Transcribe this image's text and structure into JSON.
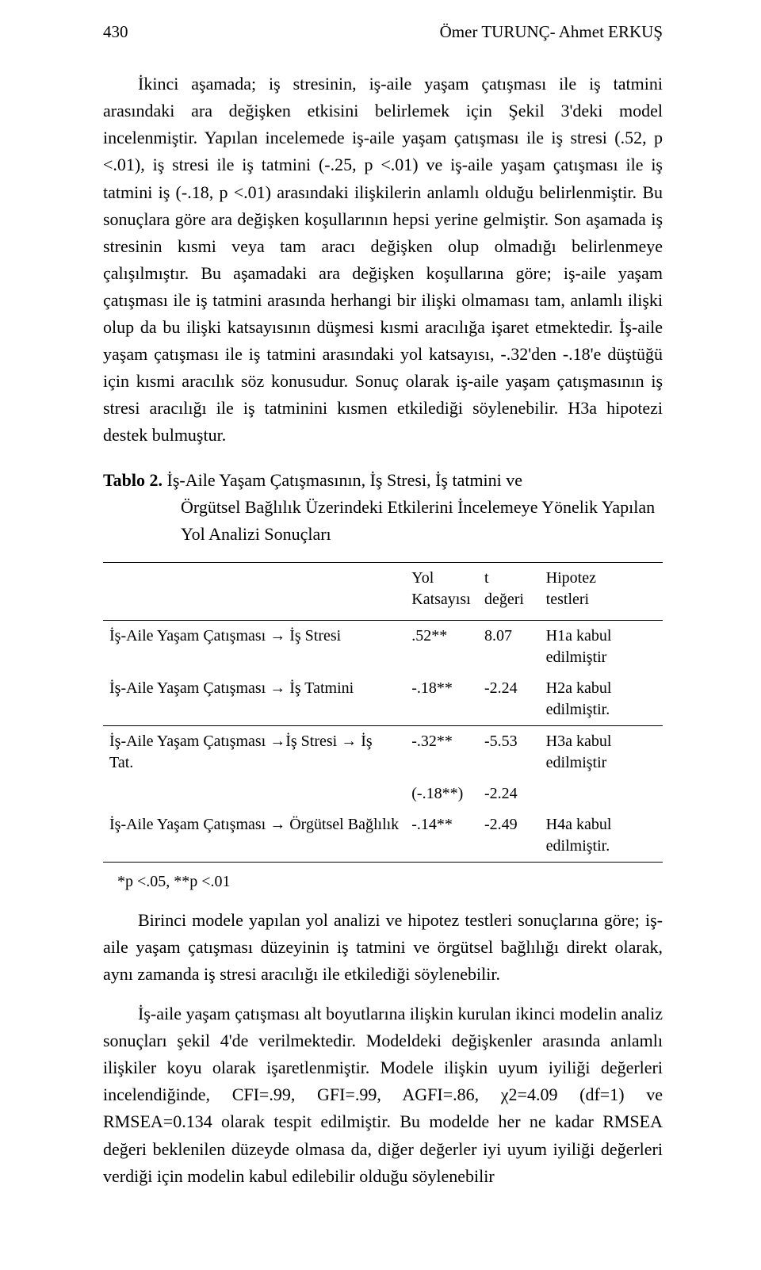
{
  "colors": {
    "text": "#000000",
    "background": "#ffffff",
    "rule": "#000000"
  },
  "typography": {
    "family": "Times New Roman",
    "body_size_pt": 22,
    "table_size_pt": 20,
    "line_height": 1.55
  },
  "header": {
    "page_number": "430",
    "running_title": "Ömer TURUNÇ- Ahmet ERKUŞ"
  },
  "paragraphs": {
    "p1": "İkinci aşamada; iş stresinin, iş-aile yaşam çatışması ile iş tatmini arasındaki ara değişken etkisini belirlemek için Şekil 3'deki model incelenmiştir. Yapılan incelemede iş-aile yaşam çatışması ile iş stresi (.52, p <.01), iş stresi ile iş tatmini (-.25, p <.01) ve iş-aile yaşam çatışması ile iş tatmini iş (-.18, p <.01) arasındaki ilişkilerin anlamlı olduğu belirlenmiştir. Bu sonuçlara göre ara değişken koşullarının hepsi yerine gelmiştir. Son aşamada iş stresinin kısmi veya tam aracı değişken olup olmadığı belirlenmeye çalışılmıştır. Bu aşamadaki ara değişken koşullarına göre; iş-aile yaşam çatışması ile iş tatmini arasında herhangi bir ilişki olmaması tam, anlamlı ilişki olup da bu ilişki katsayısının düşmesi kısmi aracılığa işaret etmektedir. İş-aile yaşam çatışması ile iş tatmini arasındaki yol katsayısı, -.32'den -.18'e düştüğü için kısmi aracılık söz konusudur. Sonuç olarak iş-aile yaşam çatışmasının iş stresi aracılığı ile iş tatminini kısmen etkilediği söylenebilir. H3a hipotezi destek bulmuştur.",
    "p2": "Birinci modele yapılan yol analizi ve hipotez testleri sonuçlarına göre; iş-aile yaşam çatışması düzeyinin iş tatmini ve örgütsel bağlılığı direkt olarak, aynı zamanda iş stresi aracılığı ile etkilediği söylenebilir.",
    "p3": "İş-aile yaşam çatışması alt boyutlarına ilişkin kurulan ikinci modelin analiz sonuçları şekil 4'de verilmektedir. Modeldeki değişkenler arasında anlamlı ilişkiler koyu olarak işaretlenmiştir. Modele ilişkin uyum iyiliği değerleri incelendiğinde, CFI=.99, GFI=.99, AGFI=.86, χ2=4.09 (df=1) ve RMSEA=0.134 olarak tespit edilmiştir. Bu modelde her ne kadar RMSEA değeri beklenilen düzeyde olmasa da, diğer değerler iyi uyum iyiliği değerleri verdiği için modelin kabul edilebilir olduğu söylenebilir"
  },
  "table": {
    "label": "Tablo 2.",
    "title_line1": " İş-Aile Yaşam Çatışmasının, İş Stresi, İş tatmini ve",
    "title_line2": "Örgütsel Bağlılık Üzerindeki Etkilerini İncelemeye Yönelik Yapılan Yol Analizi Sonuçları",
    "headers": {
      "col1_l1": "Yol",
      "col1_l2": "Katsayısı",
      "col2_l1": "t",
      "col2_l2": "değeri",
      "col3_l1": "Hipotez",
      "col3_l2": "testleri"
    },
    "rows": [
      {
        "path": "İş-Aile Yaşam Çatışması → İş Stresi",
        "coef": ".52**",
        "t": "8.07",
        "hyp": "H1a kabul edilmiştir"
      },
      {
        "path": "İş-Aile Yaşam Çatışması → İş Tatmini",
        "coef": "-.18**",
        "t": "-2.24",
        "hyp": "H2a kabul edilmiştir."
      },
      {
        "path": "İş-Aile Yaşam Çatışması →İş Stresi → İş Tat.",
        "coef": "-.32**",
        "t": "-5.53",
        "hyp": "H3a kabul edilmiştir"
      },
      {
        "path": "",
        "coef": "(-.18**)",
        "t": "-2.24",
        "hyp": ""
      },
      {
        "path": "İş-Aile Yaşam Çatışması → Örgütsel Bağlılık",
        "coef": "-.14**",
        "t": "-2.49",
        "hyp": "H4a kabul edilmiştir."
      }
    ],
    "note": "*p <.05, **p <.01",
    "style": {
      "rule_color": "#000000",
      "col_widths_pct": [
        54,
        13,
        11,
        22
      ],
      "font_size_pt": 20
    }
  }
}
